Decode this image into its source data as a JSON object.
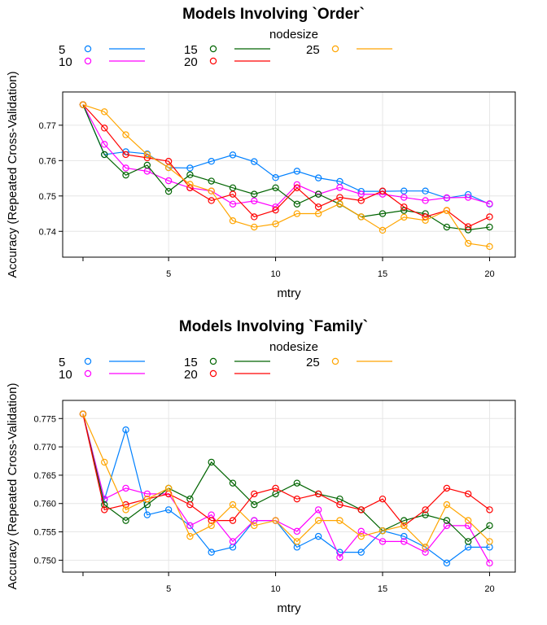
{
  "chart_data": [
    {
      "type": "line",
      "title": "Models Involving `Order`",
      "xlabel": "mtry",
      "ylabel": "Accuracy (Repeated Cross-Validation)",
      "legend_title": "nodesize",
      "legend_position": "top",
      "grid": true,
      "xlim": [
        0.05,
        21.2
      ],
      "ylim": [
        0.7327,
        0.7794
      ],
      "xticks": [
        5,
        10,
        15,
        20
      ],
      "yticks": [
        0.74,
        0.75,
        0.76,
        0.77
      ],
      "ytick_labels": [
        "0.74",
        "0.75",
        "0.76",
        "0.77"
      ],
      "x": [
        1,
        2,
        3,
        4,
        5,
        6,
        7,
        8,
        9,
        10,
        11,
        12,
        13,
        14,
        15,
        16,
        17,
        18,
        19,
        20
      ],
      "series": [
        {
          "name": "5",
          "color": "#0080ff",
          "values": [
            0.7758,
            0.7617,
            0.7625,
            0.7619,
            0.758,
            0.7579,
            0.7598,
            0.7616,
            0.7597,
            0.7552,
            0.757,
            0.7551,
            0.7541,
            0.7513,
            0.7513,
            0.7514,
            0.7514,
            0.7494,
            0.7504,
            0.7477
          ]
        },
        {
          "name": "10",
          "color": "#ff00ff",
          "values": [
            0.7758,
            0.7646,
            0.7579,
            0.757,
            0.7543,
            0.7523,
            0.7514,
            0.7477,
            0.7486,
            0.7469,
            0.7532,
            0.7505,
            0.7524,
            0.7505,
            0.7505,
            0.7496,
            0.7487,
            0.7495,
            0.7496,
            0.7478
          ]
        },
        {
          "name": "15",
          "color": "#006400",
          "values": [
            0.7758,
            0.7617,
            0.7559,
            0.7587,
            0.7513,
            0.756,
            0.7542,
            0.7523,
            0.7505,
            0.7523,
            0.7477,
            0.7505,
            0.7477,
            0.7441,
            0.745,
            0.7459,
            0.745,
            0.7412,
            0.7404,
            0.7412
          ]
        },
        {
          "name": "20",
          "color": "#ff0000",
          "values": [
            0.7758,
            0.7692,
            0.7617,
            0.7608,
            0.7598,
            0.7523,
            0.7487,
            0.7505,
            0.7441,
            0.746,
            0.7523,
            0.7469,
            0.7496,
            0.7487,
            0.7514,
            0.7469,
            0.7441,
            0.7459,
            0.7413,
            0.7441
          ]
        },
        {
          "name": "25",
          "color": "#ffa500",
          "values": [
            0.7758,
            0.7738,
            0.7673,
            0.7617,
            0.758,
            0.7533,
            0.7514,
            0.743,
            0.7412,
            0.7421,
            0.745,
            0.745,
            0.7478,
            0.7441,
            0.7403,
            0.744,
            0.7431,
            0.7459,
            0.7366,
            0.7357
          ]
        }
      ]
    },
    {
      "type": "line",
      "title": "Models Involving `Family`",
      "xlabel": "mtry",
      "ylabel": "Accuracy (Repeated Cross-Validation)",
      "legend_title": "nodesize",
      "legend_position": "top",
      "grid": true,
      "xlim": [
        0.05,
        21.2
      ],
      "ylim": [
        0.7479,
        0.7782
      ],
      "xticks": [
        5,
        10,
        15,
        20
      ],
      "yticks": [
        0.75,
        0.755,
        0.76,
        0.765,
        0.77,
        0.775
      ],
      "ytick_labels": [
        "0.750",
        "0.755",
        "0.760",
        "0.765",
        "0.770",
        "0.775"
      ],
      "x": [
        1,
        2,
        3,
        4,
        5,
        6,
        7,
        8,
        9,
        10,
        11,
        12,
        13,
        14,
        15,
        16,
        17,
        18,
        19,
        20
      ],
      "series": [
        {
          "name": "5",
          "color": "#0080ff",
          "values": [
            0.7758,
            0.7607,
            0.773,
            0.758,
            0.7589,
            0.7561,
            0.7514,
            0.7523,
            0.757,
            0.757,
            0.7523,
            0.7542,
            0.7514,
            0.7514,
            0.7552,
            0.7542,
            0.7523,
            0.7495,
            0.7523,
            0.7523
          ]
        },
        {
          "name": "10",
          "color": "#ff00ff",
          "values": [
            0.7758,
            0.7608,
            0.7627,
            0.7617,
            0.7617,
            0.7561,
            0.758,
            0.7533,
            0.757,
            0.757,
            0.7551,
            0.7589,
            0.7505,
            0.7551,
            0.7533,
            0.7533,
            0.7514,
            0.7561,
            0.7561,
            0.7495
          ]
        },
        {
          "name": "15",
          "color": "#006400",
          "values": [
            0.7758,
            0.7598,
            0.757,
            0.7598,
            0.7627,
            0.7608,
            0.7673,
            0.7636,
            0.7598,
            0.7617,
            0.7636,
            0.7617,
            0.7608,
            0.7589,
            0.7552,
            0.757,
            0.758,
            0.757,
            0.7533,
            0.7561
          ]
        },
        {
          "name": "20",
          "color": "#ff0000",
          "values": [
            0.7758,
            0.7589,
            0.7598,
            0.7608,
            0.7617,
            0.7598,
            0.757,
            0.757,
            0.7617,
            0.7627,
            0.7608,
            0.7617,
            0.7598,
            0.7589,
            0.7608,
            0.7561,
            0.7589,
            0.7627,
            0.7617,
            0.7589
          ]
        },
        {
          "name": "25",
          "color": "#ffa500",
          "values": [
            0.7758,
            0.7673,
            0.7589,
            0.7608,
            0.7627,
            0.7542,
            0.7561,
            0.7598,
            0.7561,
            0.757,
            0.7533,
            0.757,
            0.757,
            0.7542,
            0.7552,
            0.7561,
            0.7523,
            0.7598,
            0.757,
            0.7533
          ]
        }
      ]
    }
  ]
}
